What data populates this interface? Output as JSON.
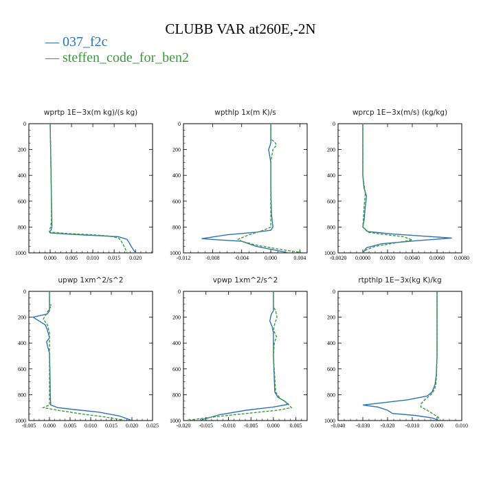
{
  "title": "CLUBB VAR at260E,-2N",
  "legend": [
    {
      "label": "— 037_f2c",
      "color": "#2a72b5"
    },
    {
      "label": "— steffen_code_for_ben2",
      "color": "#3a9a3a"
    }
  ],
  "chart_data": [
    {
      "type": "line",
      "title": "wprtp  1E−3x(m kg)/(s kg)",
      "xlim": [
        -0.005,
        0.024
      ],
      "xticks": [
        0.0,
        0.005,
        0.01,
        0.015,
        0.02
      ],
      "xtick_labels": [
        "0.000",
        "0.005",
        "0.010",
        "0.015",
        "0.020"
      ],
      "ylim": [
        1000,
        0
      ],
      "yticks": [
        0,
        200,
        400,
        600,
        800,
        1000
      ],
      "series": [
        {
          "name": "037_f2c",
          "color": "#2a72b5",
          "dash": "",
          "x": [
            0.0,
            0.0001,
            0.0002,
            0.0003,
            0.0004,
            0.0004,
            0.0002,
            -0.0002,
            0.0,
            0.004,
            0.01,
            0.016,
            0.018,
            0.0185,
            0.019,
            0.02
          ],
          "y": [
            0,
            200,
            400,
            600,
            750,
            800,
            825,
            835,
            845,
            855,
            865,
            875,
            895,
            920,
            950,
            1000
          ]
        },
        {
          "name": "steffen_code_for_ben2",
          "color": "#3a9a3a",
          "dash": "4,2",
          "x": [
            0.0,
            0.0001,
            0.0002,
            0.0003,
            0.0003,
            0.0001,
            -0.0002,
            0.0,
            0.004,
            0.01,
            0.014,
            0.016,
            0.0165,
            0.017,
            0.0175,
            0.018
          ],
          "y": [
            0,
            200,
            400,
            600,
            750,
            800,
            825,
            840,
            850,
            860,
            870,
            885,
            900,
            930,
            960,
            1000
          ]
        }
      ]
    },
    {
      "type": "line",
      "title": "wpthlp  1x(m K)/s",
      "xlim": [
        -0.012,
        0.005
      ],
      "xticks": [
        -0.012,
        -0.008,
        -0.004,
        0.0,
        0.004
      ],
      "xtick_labels": [
        "-0.012",
        "-0.008",
        "-0.004",
        "0.000",
        "0.004"
      ],
      "ylim": [
        1000,
        0
      ],
      "yticks": [
        0,
        200,
        400,
        600,
        800,
        1000
      ],
      "series": [
        {
          "name": "037_f2c",
          "color": "#2a72b5",
          "dash": "",
          "x": [
            0.0,
            0.0,
            -0.0003,
            -0.0002,
            0.0,
            0.0,
            0.0001,
            0.0003,
            0.0,
            -0.002,
            -0.006,
            -0.0095,
            -0.007,
            -0.004,
            -0.002,
            0.0025
          ],
          "y": [
            0,
            150,
            200,
            230,
            300,
            500,
            700,
            800,
            825,
            840,
            860,
            890,
            900,
            910,
            950,
            1000
          ]
        },
        {
          "name": "steffen_code_for_ben2",
          "color": "#3a9a3a",
          "dash": "4,2",
          "x": [
            0.0,
            0.0,
            0.0005,
            0.0008,
            0.0003,
            0.0,
            0.0,
            0.0,
            -0.001,
            -0.003,
            -0.0045,
            -0.004,
            -0.002,
            0.001,
            0.0045
          ],
          "y": [
            0,
            120,
            140,
            165,
            200,
            300,
            500,
            800,
            825,
            860,
            895,
            910,
            940,
            970,
            1000
          ]
        }
      ]
    },
    {
      "type": "line",
      "title": "wprcp  1E−3x(m/s) (kg/kg)",
      "xlim": [
        -0.002,
        0.008
      ],
      "xticks": [
        -0.002,
        0.0,
        0.002,
        0.004,
        0.006,
        0.008
      ],
      "xtick_labels": [
        "-0.0020",
        "0.0000",
        "0.0020",
        "0.0040",
        "0.0060",
        "0.0080"
      ],
      "ylim": [
        1000,
        0
      ],
      "yticks": [
        0,
        200,
        400,
        600,
        800,
        1000
      ],
      "series": [
        {
          "name": "037_f2c",
          "color": "#2a72b5",
          "dash": "",
          "x": [
            0.0,
            0.0,
            0.0,
            0.0001,
            0.0003,
            0.0002,
            0.0001,
            0.0,
            0.0004,
            0.0025,
            0.0072,
            0.0045,
            0.0015,
            0.0003,
            0.0
          ],
          "y": [
            0,
            200,
            400,
            500,
            560,
            640,
            750,
            800,
            835,
            855,
            885,
            905,
            930,
            960,
            1000
          ]
        },
        {
          "name": "steffen_code_for_ben2",
          "color": "#3a9a3a",
          "dash": "4,2",
          "x": [
            0.0,
            0.0,
            0.0,
            0.0002,
            0.0001,
            0.0,
            0.0004,
            0.0015,
            0.0033,
            0.004,
            0.0025,
            0.001,
            0.0003,
            0.0
          ],
          "y": [
            0,
            200,
            400,
            540,
            650,
            800,
            840,
            855,
            875,
            900,
            925,
            950,
            975,
            1000
          ]
        }
      ]
    },
    {
      "type": "line",
      "title": "upwp  1xm^2/s^2",
      "xlim": [
        -0.005,
        0.025
      ],
      "xticks": [
        -0.005,
        0.0,
        0.005,
        0.01,
        0.015,
        0.02,
        0.025
      ],
      "xtick_labels": [
        "-0.005",
        "0.000",
        "0.005",
        "0.010",
        "0.015",
        "0.020",
        "0.025"
      ],
      "ylim": [
        1000,
        0
      ],
      "yticks": [
        0,
        200,
        400,
        600,
        800,
        1000
      ],
      "series": [
        {
          "name": "037_f2c",
          "color": "#2a72b5",
          "dash": "",
          "x": [
            0.0,
            0.0,
            -0.0005,
            -0.004,
            -0.0025,
            -0.001,
            -0.0005,
            0.0,
            -0.0007,
            -0.0005,
            0.0,
            0.0001,
            0.0002,
            0.0003,
            0.002,
            0.006,
            0.012,
            0.017,
            0.02
          ],
          "y": [
            0,
            150,
            175,
            200,
            230,
            260,
            300,
            360,
            390,
            420,
            480,
            600,
            800,
            880,
            900,
            915,
            935,
            965,
            1000
          ]
        },
        {
          "name": "steffen_code_for_ben2",
          "color": "#3a9a3a",
          "dash": "4,2",
          "x": [
            0.0,
            0.0,
            0.0005,
            -0.0005,
            -0.0015,
            -0.0005,
            0.0,
            0.0,
            0.0,
            0.0,
            -0.0015,
            0.002,
            0.008,
            0.013,
            0.0185
          ],
          "y": [
            0,
            100,
            110,
            160,
            215,
            260,
            320,
            400,
            600,
            880,
            900,
            920,
            950,
            970,
            1000
          ]
        }
      ]
    },
    {
      "type": "line",
      "title": "vpwp  1xm^2/s^2",
      "xlim": [
        -0.02,
        0.0075
      ],
      "xticks": [
        -0.02,
        -0.015,
        -0.01,
        -0.005,
        0.0,
        0.005
      ],
      "xtick_labels": [
        "-0.020",
        "-0.015",
        "-0.010",
        "-0.005",
        "0.000",
        "0.005"
      ],
      "ylim": [
        1000,
        0
      ],
      "yticks": [
        0,
        200,
        400,
        600,
        800,
        1000
      ],
      "series": [
        {
          "name": "037_f2c",
          "color": "#2a72b5",
          "dash": "",
          "x": [
            0.0,
            0.0,
            -0.0005,
            -0.0008,
            -0.0003,
            0.0,
            0.0,
            0.0003,
            0.001,
            0.0025,
            0.0032,
            0.0,
            -0.006,
            -0.012,
            -0.0165
          ],
          "y": [
            0,
            150,
            180,
            230,
            270,
            320,
            500,
            780,
            820,
            850,
            875,
            895,
            920,
            955,
            1000
          ]
        },
        {
          "name": "steffen_code_for_ben2",
          "color": "#3a9a3a",
          "dash": "4,2",
          "x": [
            0.0,
            0.0,
            0.0005,
            0.0008,
            0.0003,
            0.0,
            0.0007,
            0.0002,
            0.0,
            0.0005,
            0.0015,
            0.003,
            0.004,
            0.001,
            -0.006,
            -0.014,
            -0.0195
          ],
          "y": [
            0,
            120,
            150,
            200,
            250,
            300,
            350,
            400,
            500,
            780,
            830,
            860,
            900,
            920,
            945,
            975,
            1000
          ]
        }
      ]
    },
    {
      "type": "line",
      "title": "rtpthlp  1E−3x(kg K)/kg",
      "xlim": [
        -0.04,
        0.01
      ],
      "xticks": [
        -0.04,
        -0.03,
        -0.02,
        -0.01,
        0.0,
        0.01
      ],
      "xtick_labels": [
        "-0.040",
        "-0.030",
        "-0.020",
        "-0.010",
        "0.000",
        "0.010"
      ],
      "ylim": [
        1000,
        0
      ],
      "yticks": [
        0,
        200,
        400,
        600,
        800,
        1000
      ],
      "series": [
        {
          "name": "037_f2c",
          "color": "#2a72b5",
          "dash": "",
          "x": [
            0.0,
            0.0,
            -0.0003,
            -0.0008,
            -0.002,
            -0.004,
            -0.012,
            -0.03,
            -0.024,
            -0.02,
            -0.018,
            -0.009,
            -0.002,
            0.001
          ],
          "y": [
            0,
            500,
            650,
            720,
            780,
            810,
            840,
            880,
            895,
            920,
            945,
            960,
            980,
            1000
          ]
        },
        {
          "name": "steffen_code_for_ben2",
          "color": "#3a9a3a",
          "dash": "4,2",
          "x": [
            0.0,
            0.0,
            -0.0002,
            -0.0005,
            -0.001,
            -0.0025,
            -0.005,
            -0.0065,
            -0.0065,
            -0.004,
            -0.0015,
            0.0005,
            0.0015
          ],
          "y": [
            0,
            500,
            650,
            720,
            760,
            800,
            840,
            870,
            895,
            920,
            950,
            975,
            1000
          ]
        }
      ]
    }
  ]
}
